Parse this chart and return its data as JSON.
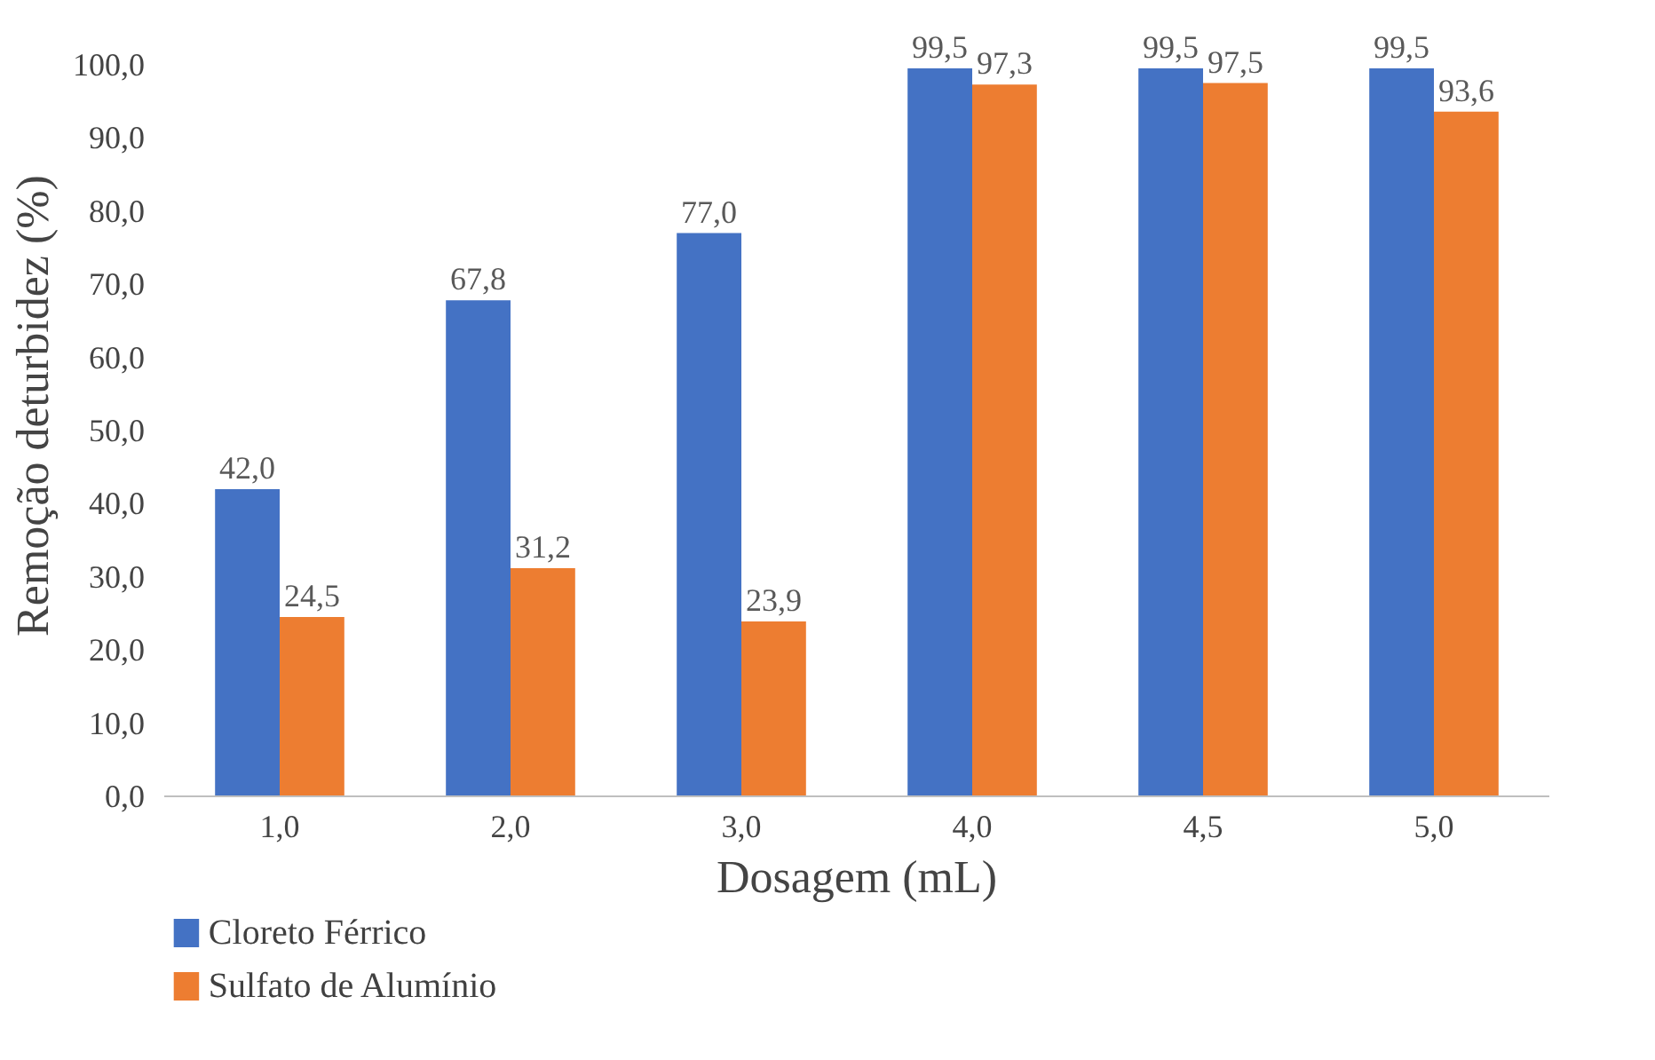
{
  "chart_data": {
    "type": "bar",
    "xlabel": "Dosagem (mL)",
    "ylabel": "Remoção deturbidez (%)",
    "categories": [
      "1,0",
      "2,0",
      "3,0",
      "4,0",
      "4,5",
      "5,0"
    ],
    "series": [
      {
        "name": "Cloreto Férrico",
        "color": "#4472c4",
        "values": [
          42.0,
          67.8,
          77.0,
          99.5,
          99.5,
          99.5
        ],
        "value_labels": [
          "42,0",
          "67,8",
          "77,0",
          "99,5",
          "99,5",
          "99,5"
        ]
      },
      {
        "name": "Sulfato de Alumínio",
        "color": "#ed7d31",
        "values": [
          24.5,
          31.2,
          23.9,
          97.3,
          97.5,
          93.6
        ],
        "value_labels": [
          "24,5",
          "31,2",
          "23,9",
          "97,3",
          "97,5",
          "93,6"
        ]
      }
    ],
    "ylim": [
      0,
      100
    ],
    "yticks": [
      {
        "value": 0,
        "label": "0,0"
      },
      {
        "value": 10,
        "label": "10,0"
      },
      {
        "value": 20,
        "label": "20,0"
      },
      {
        "value": 30,
        "label": "30,0"
      },
      {
        "value": 40,
        "label": "40,0"
      },
      {
        "value": 50,
        "label": "50,0"
      },
      {
        "value": 60,
        "label": "60,0"
      },
      {
        "value": 70,
        "label": "70,0"
      },
      {
        "value": 80,
        "label": "80,0"
      },
      {
        "value": 90,
        "label": "90,0"
      },
      {
        "value": 100,
        "label": "100,0"
      }
    ],
    "grid": false,
    "legend": "bottom left"
  }
}
